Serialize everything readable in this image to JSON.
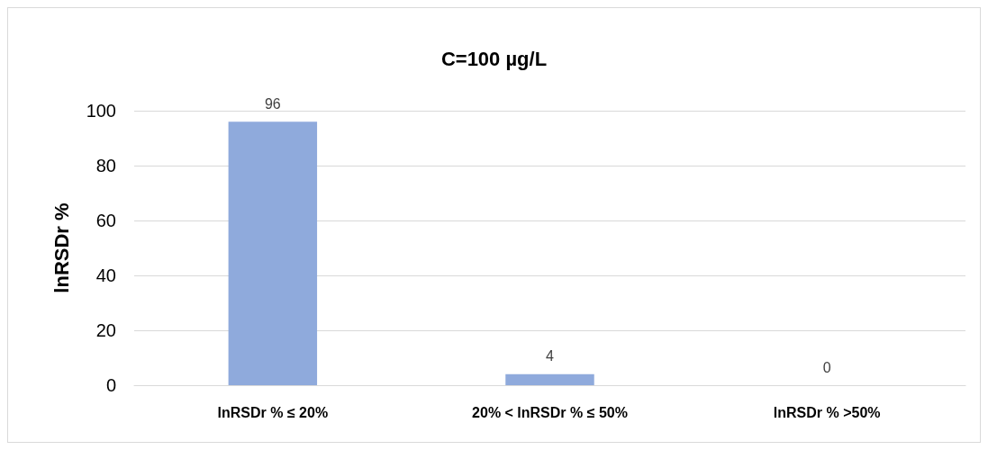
{
  "chart_data": {
    "type": "bar",
    "title": "C=100 µg/L",
    "ylabel": "lnRSDr %",
    "categories": [
      "lnRSDr % ≤ 20%",
      "20% < lnRSDr % ≤ 50%",
      "lnRSDr % >50%"
    ],
    "values": [
      96,
      4,
      0
    ],
    "color": "#8faadc",
    "ylim": [
      0,
      100
    ],
    "yticks": [
      0,
      20,
      40,
      60,
      80,
      100
    ],
    "grid": "y",
    "data_labels": true
  }
}
